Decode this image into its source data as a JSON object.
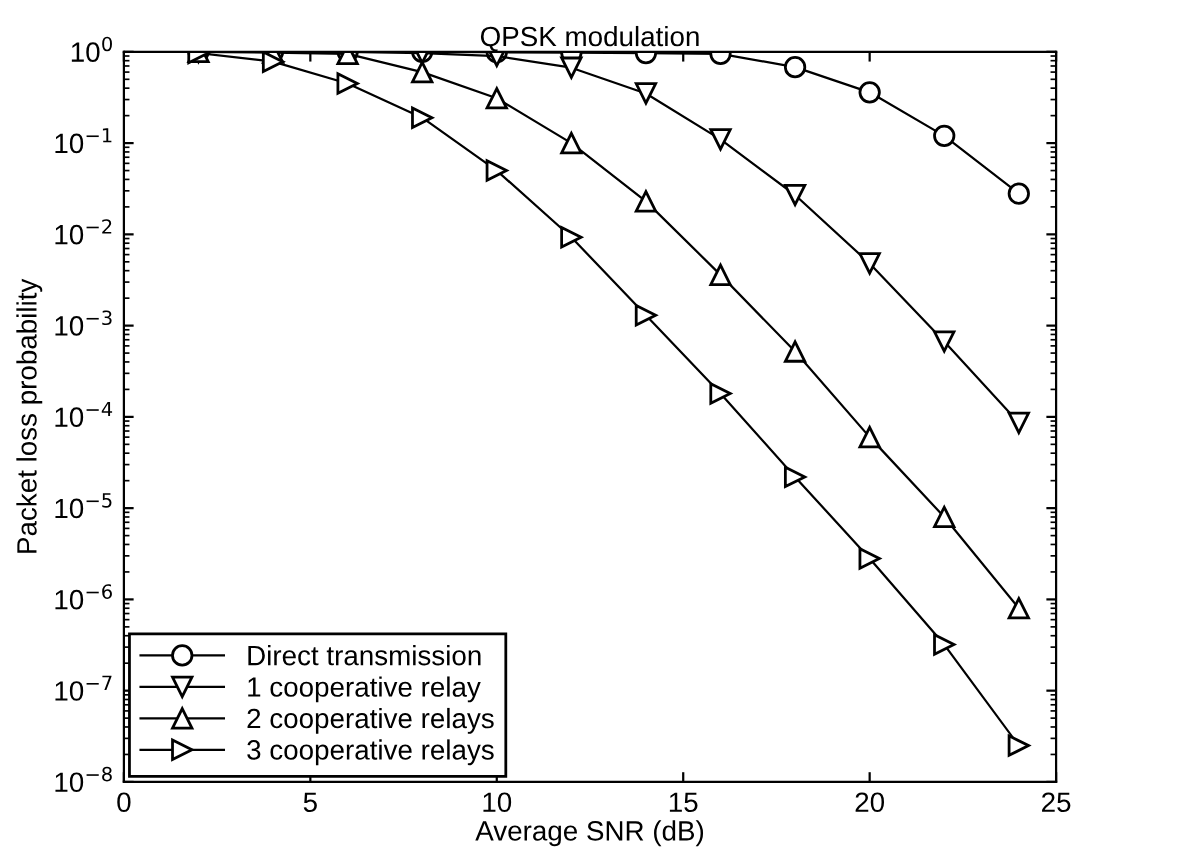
{
  "chart_data": {
    "type": "line",
    "title": "QPSK modulation",
    "xlabel": "Average SNR (dB)",
    "ylabel": "Packet loss probability",
    "x": [
      2,
      4,
      6,
      8,
      10,
      12,
      14,
      16,
      18,
      20,
      22,
      24
    ],
    "series": [
      {
        "name": "Direct transmission",
        "color": "#000000",
        "marker": "circle",
        "values": [
          1,
          1,
          1,
          1,
          0.99,
          0.98,
          0.97,
          0.95,
          0.68,
          0.36,
          0.12,
          0.028
        ]
      },
      {
        "name": "1 cooperative relay",
        "color": "#000000",
        "marker": "triangle_down",
        "values": [
          1,
          1,
          1,
          0.97,
          0.9,
          0.67,
          0.35,
          0.11,
          0.027,
          0.0048,
          0.00067,
          8.6e-05
        ]
      },
      {
        "name": "2 cooperative relays",
        "color": "#000000",
        "marker": "triangle",
        "values": [
          1,
          0.98,
          0.95,
          0.6,
          0.31,
          0.1,
          0.023,
          0.0036,
          0.00052,
          6e-05,
          8e-06,
          8e-07
        ]
      },
      {
        "name": "3 cooperative relays",
        "color": "#000000",
        "marker": "triangle_right",
        "values": [
          0.97,
          0.78,
          0.45,
          0.19,
          0.05,
          0.0093,
          0.0013,
          0.00018,
          2.2e-05,
          2.8e-06,
          3.2e-07,
          2.5e-08
        ]
      }
    ],
    "log": "y",
    "xlim": [
      0,
      25
    ],
    "xticks": [
      0,
      5,
      10,
      15,
      20,
      25
    ],
    "ylim": [
      1e-08,
      1
    ],
    "yticks": [
      {
        "value": 1e-08,
        "label": "10$^{−8}$"
      },
      {
        "value": 1e-07,
        "label": "10$^{−7}$"
      },
      {
        "value": 1e-06,
        "label": "10$^{−6}$"
      },
      {
        "value": 1e-05,
        "label": "10$^{−5}$"
      },
      {
        "value": 0.0001,
        "label": "10$^{−4}$"
      },
      {
        "value": 0.001,
        "label": "10$^{−3}$"
      },
      {
        "value": 0.01,
        "label": "10$^{−2}$"
      },
      {
        "value": 0.1,
        "label": "10$^{−1}$"
      },
      {
        "value": 1,
        "label": "10$^{0}$"
      }
    ],
    "grid": false,
    "legend": "bottom left",
    "line_style": "solid"
  }
}
